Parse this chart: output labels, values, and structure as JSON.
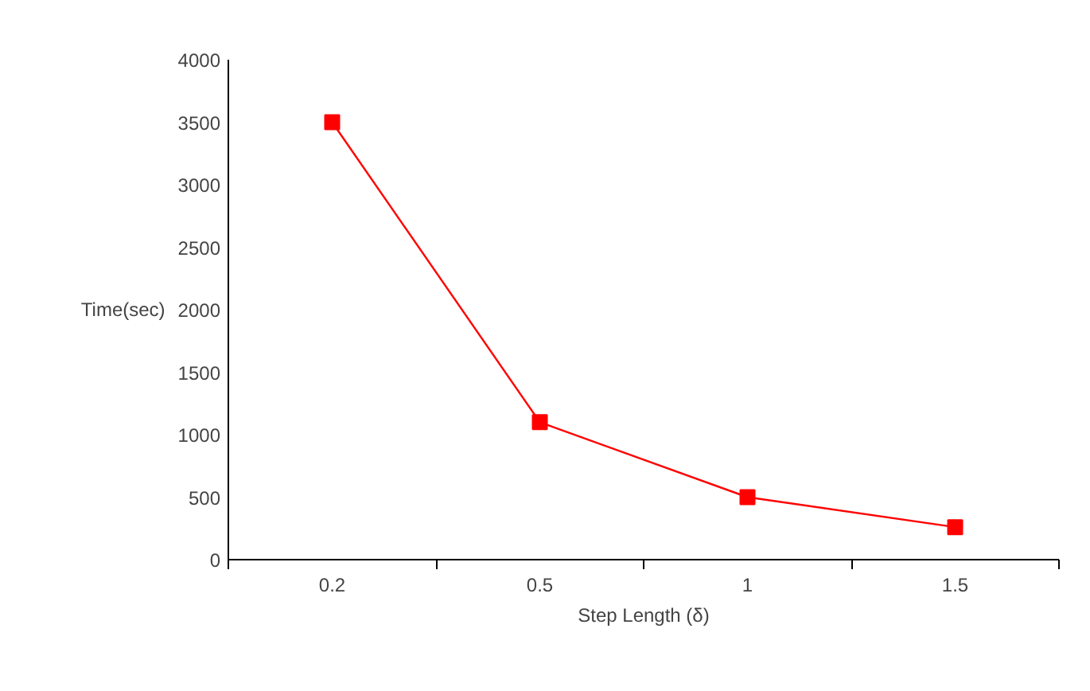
{
  "chart_data": {
    "type": "line",
    "xlabel": "Step Length (δ)",
    "ylabel": "Time(sec)",
    "categories": [
      "0.2",
      "0.5",
      "1",
      "1.5"
    ],
    "series": [
      {
        "color": "#ff0000",
        "values": [
          3500,
          1100,
          500,
          260
        ]
      }
    ],
    "ylim": [
      0,
      4000
    ],
    "yticks": [
      0,
      500,
      1000,
      1500,
      2000,
      2500,
      3000,
      3500,
      4000
    ],
    "grid": false,
    "marker": "square",
    "line_style": "solid"
  }
}
